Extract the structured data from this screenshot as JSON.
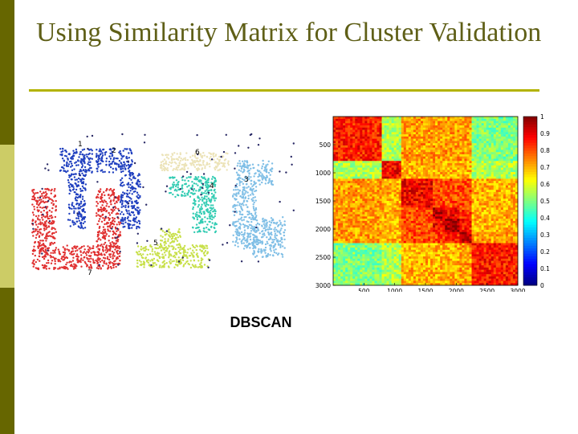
{
  "slide": {
    "title": "Using Similarity Matrix for Cluster Validation",
    "caption": "DBSCAN"
  },
  "colors": {
    "sidebar_dark": "#666600",
    "sidebar_light": "#cccc66",
    "title": "#5f5f17",
    "rule": "#b3b300"
  },
  "scatter": {
    "clusters": [
      {
        "label": "1",
        "color": "#1f3fbf"
      },
      {
        "label": "2",
        "color": "#1f3fbf"
      },
      {
        "label": "3",
        "color": "#80bfe6"
      },
      {
        "label": "4",
        "color": "#33ccb3"
      },
      {
        "label": "5",
        "color": "#c8e04a"
      },
      {
        "label": "6",
        "color": "#ece3b8"
      },
      {
        "label": "7",
        "color": "#e03030"
      }
    ],
    "noise_color": "#2a2a66"
  },
  "chart_data": {
    "type": "heatmap",
    "n_points": 3000,
    "x_ticks": [
      "500",
      "1000",
      "1500",
      "2000",
      "2500",
      "3000"
    ],
    "y_ticks": [
      "500",
      "1000",
      "1500",
      "2000",
      "2500",
      "3000"
    ],
    "xlim": [
      0,
      3000
    ],
    "ylim": [
      0,
      3000
    ],
    "colorbar_ticks": [
      "1",
      "0.9",
      "0.8",
      "0.7",
      "0.6",
      "0.5",
      "0.4",
      "0.3",
      "0.2",
      "0.1",
      "0"
    ],
    "colorbar_range": [
      0,
      1
    ],
    "colormap": "jet",
    "cluster_boundaries": [
      0,
      800,
      1100,
      1600,
      1800,
      2050,
      2250,
      3000
    ],
    "block_similarity": [
      [
        0.85,
        0.55,
        0.72,
        0.72,
        0.72,
        0.72,
        0.5
      ],
      [
        0.55,
        0.88,
        0.7,
        0.7,
        0.7,
        0.7,
        0.55
      ],
      [
        0.72,
        0.7,
        0.88,
        0.8,
        0.8,
        0.8,
        0.7
      ],
      [
        0.72,
        0.7,
        0.8,
        0.95,
        0.88,
        0.82,
        0.7
      ],
      [
        0.72,
        0.7,
        0.8,
        0.88,
        0.97,
        0.85,
        0.7
      ],
      [
        0.72,
        0.7,
        0.8,
        0.82,
        0.85,
        0.93,
        0.72
      ],
      [
        0.5,
        0.55,
        0.7,
        0.7,
        0.7,
        0.72,
        0.85
      ]
    ]
  }
}
